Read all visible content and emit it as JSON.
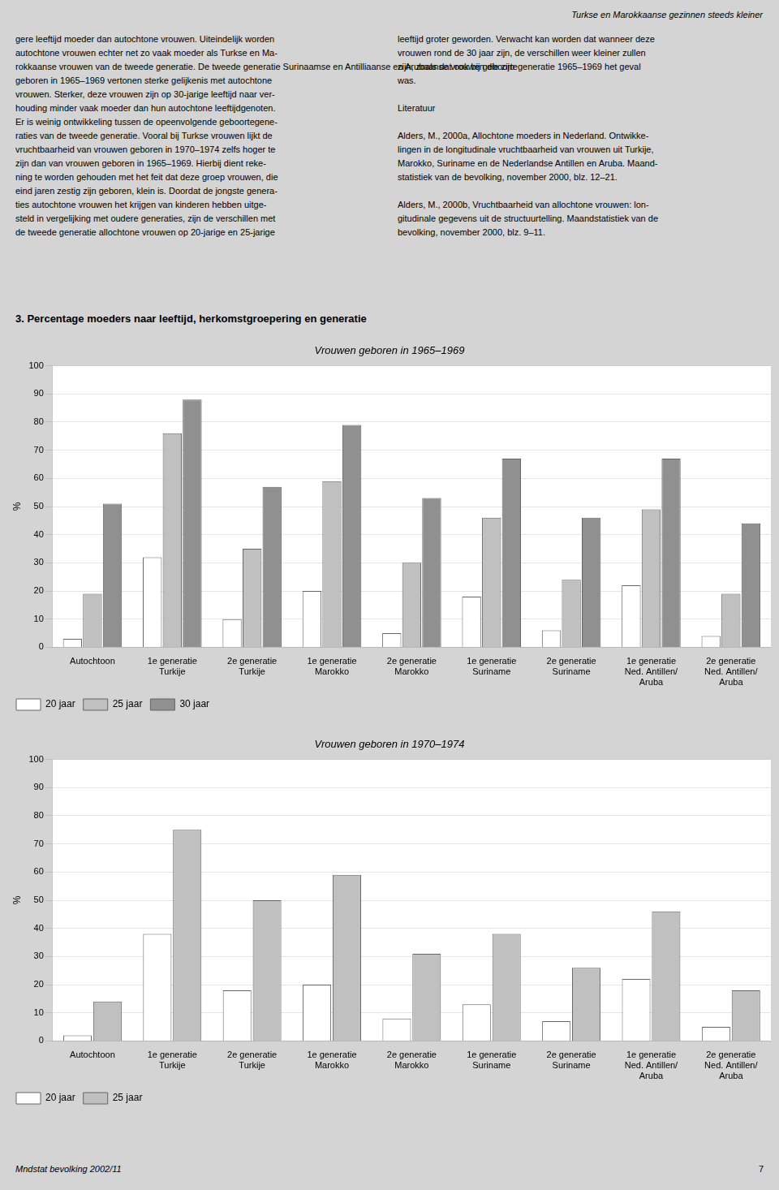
{
  "header": "Turkse en Marokkaanse gezinnen steeds kleiner",
  "text_columns": [
    "gere leeftijd moeder dan autochtone vrouwen. Uiteindelijk worden\nautochtone vrouwen echter net zo vaak moeder als Turkse en Ma-\nrokkaanse vrouwen van de tweede generatie. De tweede generatie Surinaamse en Antilliaanse en Arubaanse vrouwen die zijn\ngeboren in 1965–1969 vertonen sterke gelijkenis met autochtone\nvrouwen. Sterker, deze vrouwen zijn op 30-jarige leeftijd naar ver-\nhouding minder vaak moeder dan hun autochtone leeftijdgenoten.\nEr is weinig ontwikkeling tussen de opeenvolgende geboortegene-\nraties van de tweede generatie. Vooral bij Turkse vrouwen lijkt de\nvruchtbaarheid van vrouwen geboren in 1970–1974 zelfs hoger te\nzijn dan van vrouwen geboren in 1965–1969. Hierbij dient reke-\nning te worden gehouden met het feit dat deze groep vrouwen, die\neind jaren zestig zijn geboren, klein is. Doordat de jongste genera-\nties autochtone vrouwen het krijgen van kinderen hebben uitge-\nsteld in vergelijking met oudere generaties, zijn de verschillen met\nde tweede generatie allochtone vrouwen op 20-jarige en 25-jarige",
    "leeftijd groter geworden. Verwacht kan worden dat wanneer deze\nvrouwen rond de 30 jaar zijn, de verschillen weer kleiner zullen\nzijn, zoals dat ook bij geboortegeneratie 1965–1969 het geval\nwas.\n\nLiteratuur\n\nAlders, M., 2000a, Allochtone moeders in Nederland. Ontwikke-\nlingen in de longitudinale vruchtbaarheid van vrouwen uit Turkije,\nMarokko, Suriname en de Nederlandse Antillen en Aruba. Maand-\nstatistiek van de bevolking, november 2000, blz. 12–21.\n\nAlders, M., 2000b, Vruchtbaarheid van allochtone vrouwen: lon-\ngitudinale gegevens uit de structuurtelling. Maandstatistiek van de\nbevolking, november 2000, blz. 9–11."
  ],
  "section_title": "3.  Percentage moeders naar leeftijd, herkomstgroepering en generatie",
  "footer": [
    "Mndstat bevolking 2002/11",
    "7"
  ],
  "chart_data": [
    {
      "type": "bar",
      "title": "Vrouwen geboren in 1965–1969",
      "ylabel": "%",
      "categories": [
        "Autochtoon",
        "1e generatie\nTurkije",
        "2e generatie\nTurkije",
        "1e generatie\nMarokko",
        "2e generatie\nMarokko",
        "1e generatie\nSuriname",
        "2e generatie\nSuriname",
        "1e generatie\nNed. Antillen/\nAruba",
        "2e generatie\nNed. Antillen/\nAruba"
      ],
      "series": [
        {
          "name": "20 jaar",
          "color": "#ffffff",
          "values": [
            3,
            32,
            10,
            20,
            5,
            18,
            6,
            22,
            4
          ]
        },
        {
          "name": "25 jaar",
          "color": "#c0c0c0",
          "values": [
            19,
            76,
            35,
            59,
            30,
            46,
            24,
            49,
            19
          ]
        },
        {
          "name": "30 jaar",
          "color": "#909090",
          "values": [
            51,
            88,
            57,
            79,
            53,
            67,
            46,
            67,
            44
          ]
        }
      ],
      "ylim": [
        0,
        100
      ],
      "yticks": [
        0,
        10,
        20,
        30,
        40,
        50,
        60,
        70,
        80,
        90,
        100
      ],
      "grid": true,
      "legend": "bottom"
    },
    {
      "type": "bar",
      "title": "Vrouwen geboren in 1970–1974",
      "ylabel": "%",
      "categories": [
        "Autochtoon",
        "1e generatie\nTurkije",
        "2e generatie\nTurkije",
        "1e generatie\nMarokko",
        "2e generatie\nMarokko",
        "1e generatie\nSuriname",
        "2e generatie\nSuriname",
        "1e generatie\nNed. Antillen/\nAruba",
        "2e generatie\nNed. Antillen/\nAruba"
      ],
      "series": [
        {
          "name": "20 jaar",
          "color": "#ffffff",
          "values": [
            2,
            38,
            18,
            20,
            8,
            13,
            7,
            22,
            5
          ]
        },
        {
          "name": "25 jaar",
          "color": "#c0c0c0",
          "values": [
            14,
            75,
            50,
            59,
            31,
            38,
            26,
            46,
            18
          ]
        }
      ],
      "ylim": [
        0,
        100
      ],
      "yticks": [
        0,
        10,
        20,
        30,
        40,
        50,
        60,
        70,
        80,
        90,
        100
      ],
      "grid": true,
      "legend": "bottom"
    }
  ]
}
